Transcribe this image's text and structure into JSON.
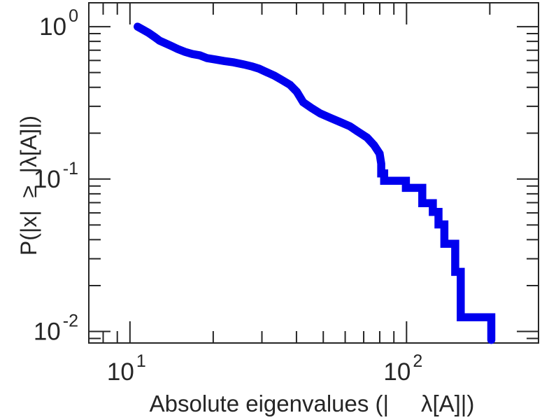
{
  "figure": {
    "background": "#ffffff",
    "frame_color": "#262626",
    "text_color": "#262626"
  },
  "chart_data": {
    "type": "line",
    "style": "ccdf-staircase",
    "title": "",
    "xlabel": "Absolute eigenvalues (|     λ[A]|)",
    "ylabel": "P(|x|  ≥  |λ[A]|)",
    "x_scale": "log",
    "y_scale": "log",
    "xlim": [
      7.1,
      300
    ],
    "ylim": [
      0.0084,
      1.434
    ],
    "grid": false,
    "legend": null,
    "x_major_ticks": [
      {
        "value": 10,
        "base": "10",
        "exp": "1"
      },
      {
        "value": 100,
        "base": "10",
        "exp": "2"
      }
    ],
    "x_minor_ticks": [
      8,
      9,
      20,
      30,
      40,
      50,
      60,
      70,
      80,
      90,
      200
    ],
    "y_major_ticks": [
      {
        "value": 1,
        "base": "10",
        "exp": "0"
      },
      {
        "value": 0.1,
        "base": "10",
        "exp": "-1"
      },
      {
        "value": 0.01,
        "base": "10",
        "exp": "-2"
      }
    ],
    "y_minor_ticks": [
      0.9,
      0.8,
      0.7,
      0.6,
      0.5,
      0.4,
      0.3,
      0.2,
      0.09,
      0.08,
      0.07,
      0.06,
      0.05,
      0.04,
      0.03,
      0.02,
      0.009
    ],
    "series": [
      {
        "name": "eigenvalue-ccdf",
        "color": "#0000ee",
        "line_width": 11.5,
        "points": [
          [
            10.66,
            1.0
          ],
          [
            11.2,
            0.95
          ],
          [
            11.7,
            0.909
          ],
          [
            12.3,
            0.853
          ],
          [
            12.8,
            0.809
          ],
          [
            13.5,
            0.775
          ],
          [
            14.2,
            0.743
          ],
          [
            14.9,
            0.713
          ],
          [
            15.8,
            0.683
          ],
          [
            16.8,
            0.662
          ],
          [
            17.9,
            0.648
          ],
          [
            19.0,
            0.621
          ],
          [
            20.4,
            0.608
          ],
          [
            21.9,
            0.595
          ],
          [
            23.7,
            0.583
          ],
          [
            25.8,
            0.565
          ],
          [
            27.7,
            0.547
          ],
          [
            29.3,
            0.53
          ],
          [
            31.2,
            0.503
          ],
          [
            33.3,
            0.477
          ],
          [
            35.4,
            0.447
          ],
          [
            37.9,
            0.415
          ],
          [
            40.1,
            0.374
          ],
          [
            42.3,
            0.319
          ],
          [
            45.3,
            0.293
          ],
          [
            48.8,
            0.269
          ],
          [
            53.0,
            0.252
          ],
          [
            57.4,
            0.237
          ],
          [
            62.4,
            0.222
          ],
          [
            66.9,
            0.204
          ],
          [
            72.0,
            0.187
          ],
          [
            76.3,
            0.167
          ],
          [
            79.9,
            0.147
          ],
          [
            81.0,
            0.126
          ],
          [
            81.0,
            0.109
          ],
          [
            83.0,
            0.109
          ],
          [
            83.0,
            0.0975
          ],
          [
            99.5,
            0.0975
          ],
          [
            99.5,
            0.0875
          ],
          [
            114,
            0.0875
          ],
          [
            114,
            0.0695
          ],
          [
            124.5,
            0.0695
          ],
          [
            124.5,
            0.0608
          ],
          [
            130.5,
            0.0608
          ],
          [
            130.5,
            0.0504
          ],
          [
            137,
            0.0504
          ],
          [
            137,
            0.0376
          ],
          [
            150,
            0.0376
          ],
          [
            150,
            0.0246
          ],
          [
            157,
            0.0246
          ],
          [
            157,
            0.0124
          ],
          [
            202.5,
            0.0124
          ],
          [
            202.5,
            0.0088
          ]
        ]
      }
    ]
  }
}
